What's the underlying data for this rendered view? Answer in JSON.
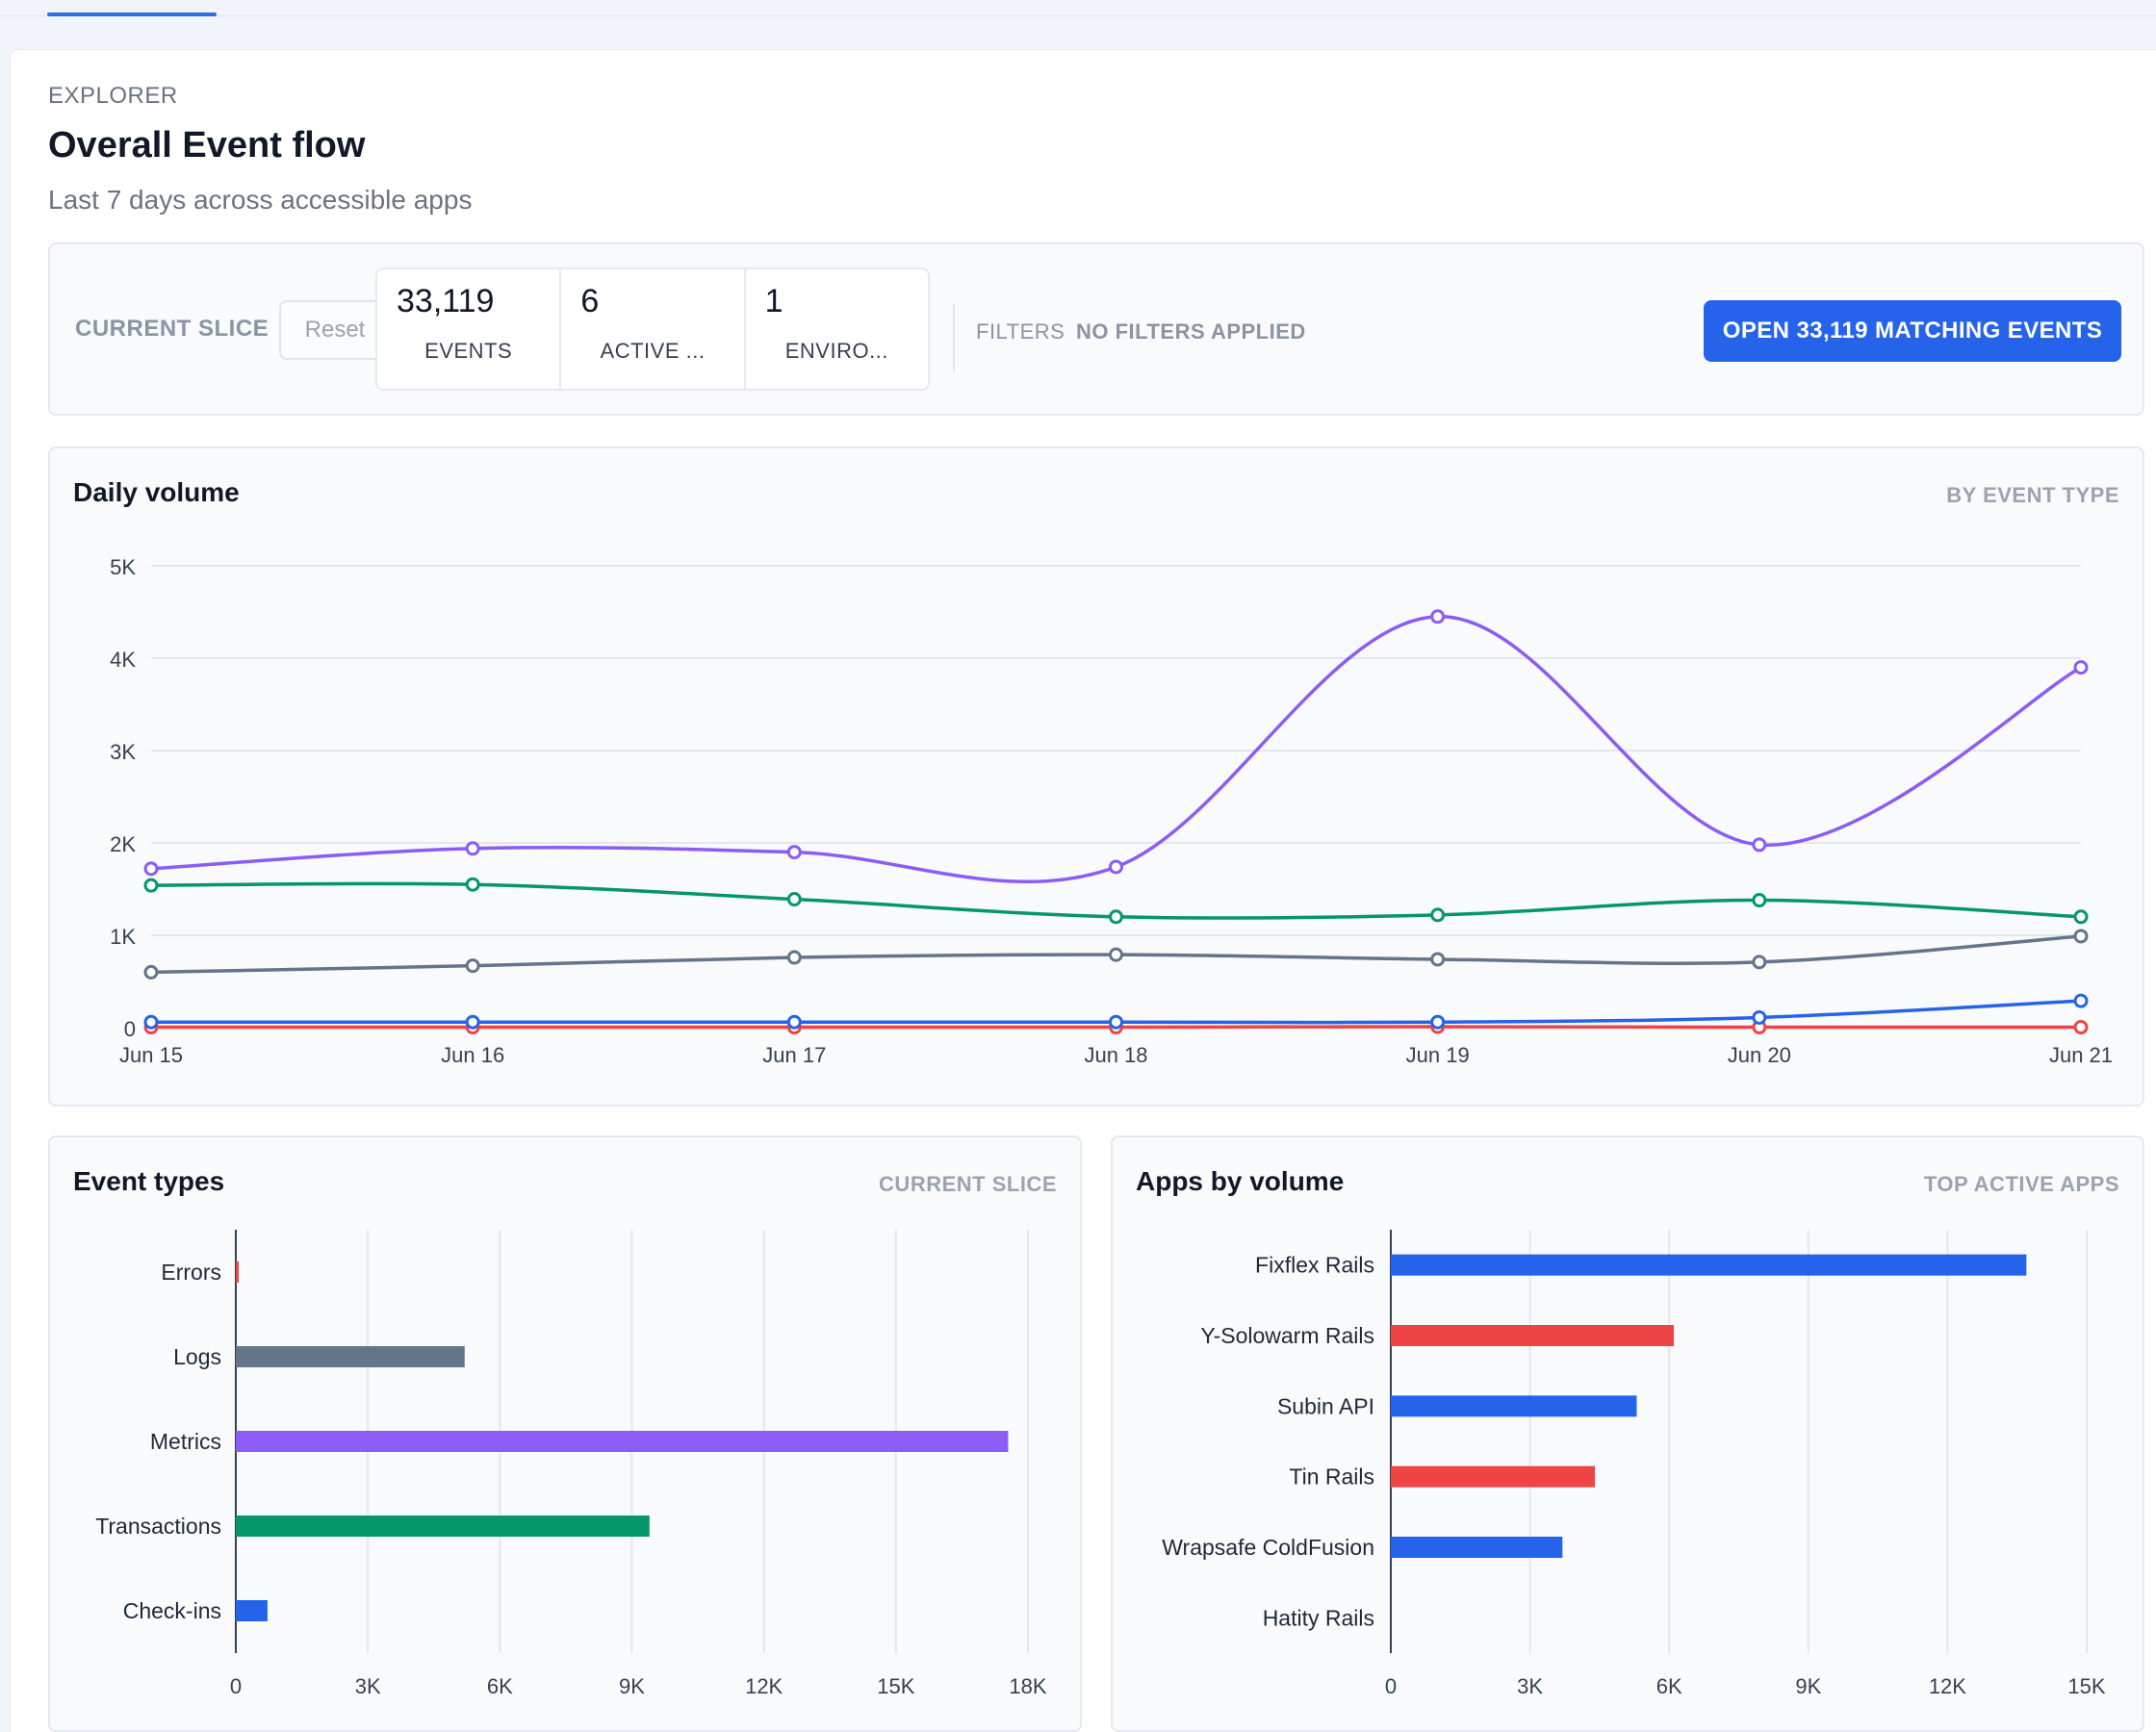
{
  "header": {
    "eyebrow": "EXPLORER",
    "title": "Overall Event flow",
    "subtitle": "Last 7 days across accessible apps"
  },
  "slice": {
    "label": "CURRENT SLICE",
    "reset_label": "Reset",
    "stats": [
      {
        "value": "33,119",
        "label": "EVENTS"
      },
      {
        "value": "6",
        "label": "ACTIVE ..."
      },
      {
        "value": "1",
        "label": "ENVIRO..."
      }
    ],
    "filters_label": "FILTERS",
    "filters_value": "NO FILTERS APPLIED",
    "open_button": "OPEN 33,119 MATCHING EVENTS"
  },
  "colors": {
    "purple": "#8b5cf6",
    "green": "#059669",
    "gray": "#64748b",
    "blue": "#2563eb",
    "red": "#ef4444",
    "accent": "#2563eb"
  },
  "chart_data": [
    {
      "type": "line",
      "title": "Daily volume",
      "tag": "BY EVENT TYPE",
      "categories": [
        "Jun 15",
        "Jun 16",
        "Jun 17",
        "Jun 18",
        "Jun 19",
        "Jun 20",
        "Jun 21"
      ],
      "ylim": [
        0,
        5000
      ],
      "yticks": [
        0,
        1000,
        2000,
        3000,
        4000,
        5000
      ],
      "ytick_labels": [
        "0",
        "1K",
        "2K",
        "3K",
        "4K",
        "5K"
      ],
      "grid": true,
      "series": [
        {
          "color": "#8b5cf6",
          "values": [
            1720,
            1940,
            1900,
            1740,
            4450,
            1980,
            3900
          ]
        },
        {
          "color": "#059669",
          "values": [
            1540,
            1550,
            1390,
            1200,
            1220,
            1380,
            1200
          ]
        },
        {
          "color": "#64748b",
          "values": [
            600,
            670,
            760,
            790,
            740,
            710,
            990
          ]
        },
        {
          "color": "#2563eb",
          "values": [
            60,
            60,
            60,
            60,
            60,
            110,
            290
          ]
        },
        {
          "color": "#ef4444",
          "values": [
            5,
            5,
            5,
            5,
            10,
            5,
            5
          ]
        }
      ]
    },
    {
      "type": "bar",
      "orientation": "horizontal",
      "title": "Event types",
      "tag": "CURRENT SLICE",
      "categories": [
        "Errors",
        "Logs",
        "Metrics",
        "Transactions",
        "Check-ins"
      ],
      "values": [
        60,
        5200,
        17550,
        9400,
        720
      ],
      "colors": [
        "#ef4444",
        "#64748b",
        "#8b5cf6",
        "#059669",
        "#2563eb"
      ],
      "xlim": [
        0,
        18000
      ],
      "xticks": [
        0,
        3000,
        6000,
        9000,
        12000,
        15000,
        18000
      ],
      "xtick_labels": [
        "0",
        "3K",
        "6K",
        "9K",
        "12K",
        "15K",
        "18K"
      ],
      "grid": true
    },
    {
      "type": "bar",
      "orientation": "horizontal",
      "title": "Apps by volume",
      "tag": "TOP ACTIVE APPS",
      "categories": [
        "Fixflex Rails",
        "Y-Solowarm Rails",
        "Subin API",
        "Tin Rails",
        "Wrapsafe ColdFusion",
        "Hatity Rails"
      ],
      "values": [
        13700,
        6100,
        5300,
        4400,
        3700,
        0
      ],
      "colors": [
        "#2563eb",
        "#ef4444",
        "#2563eb",
        "#ef4444",
        "#2563eb",
        "#ef4444"
      ],
      "xlim": [
        0,
        15000
      ],
      "xticks": [
        0,
        3000,
        6000,
        9000,
        12000,
        15000
      ],
      "xtick_labels": [
        "0",
        "3K",
        "6K",
        "9K",
        "12K",
        "15K"
      ],
      "grid": true
    }
  ]
}
